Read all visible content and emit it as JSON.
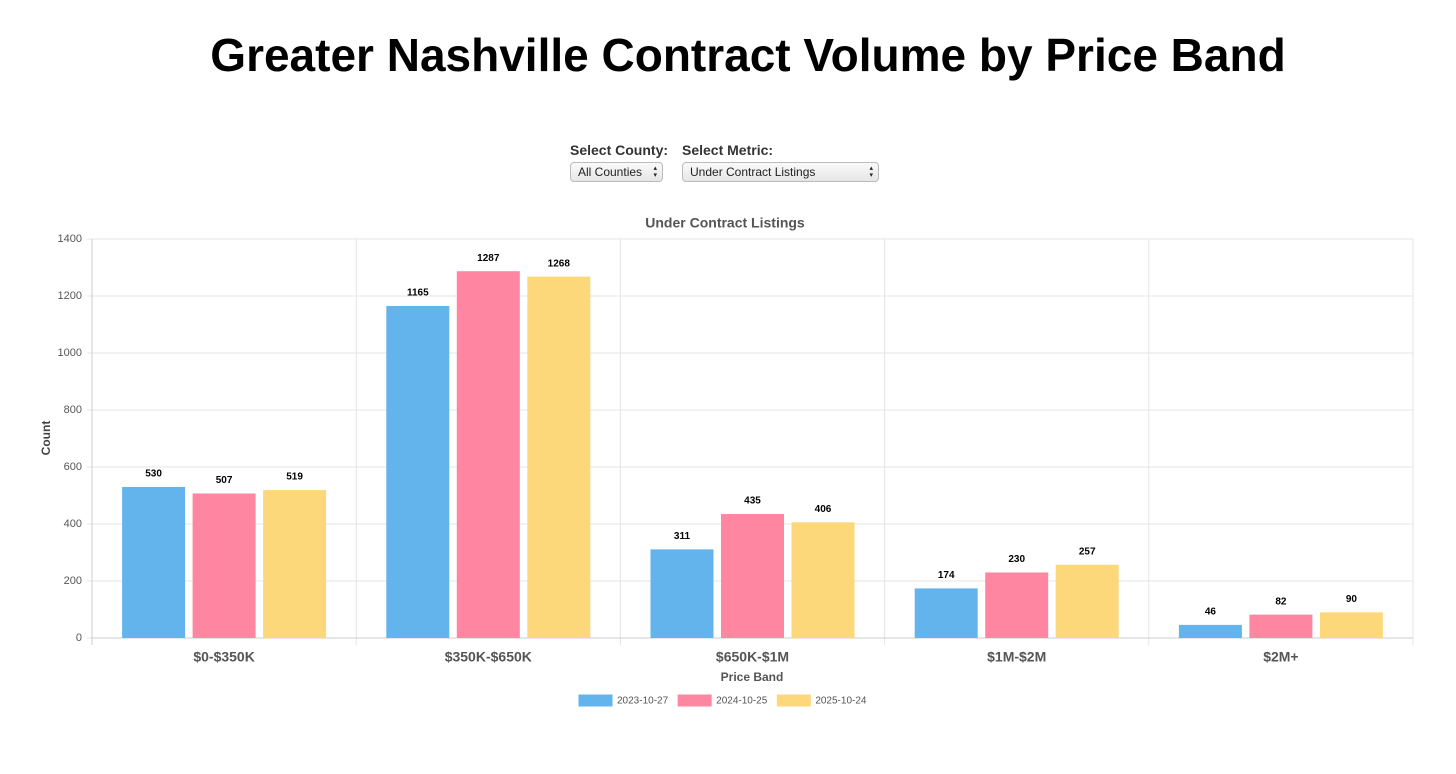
{
  "page_title": "Greater Nashville Contract Volume by Price Band",
  "controls": [
    {
      "label": "Select County:",
      "value": "All Counties"
    },
    {
      "label": "Select Metric:",
      "value": "Under Contract Listings"
    }
  ],
  "chart_data": {
    "type": "bar",
    "title": "Under Contract Listings",
    "x_label": "Price Band",
    "y_label": "Count",
    "categories": [
      "$0-$350K",
      "$350K-$650K",
      "$650K-$1M",
      "$1M-$2M",
      "$2M+"
    ],
    "series": [
      {
        "name": "2023-10-27",
        "color": "#63b4ec",
        "values": [
          530,
          1165,
          311,
          174,
          46
        ]
      },
      {
        "name": "2024-10-25",
        "color": "#ff86a0",
        "values": [
          507,
          1287,
          435,
          230,
          82
        ]
      },
      {
        "name": "2025-10-24",
        "color": "#fdd87a",
        "values": [
          519,
          1268,
          406,
          257,
          90
        ]
      }
    ],
    "ylim": [
      0,
      1400
    ],
    "yticks": [
      0,
      200,
      400,
      600,
      800,
      1000,
      1200,
      1400
    ],
    "grid": true
  }
}
